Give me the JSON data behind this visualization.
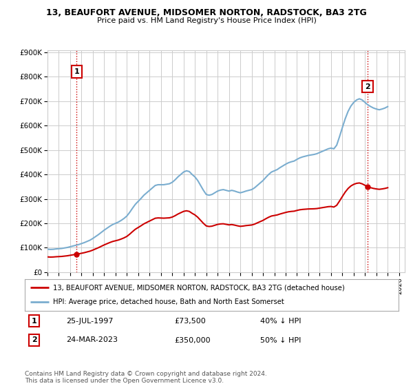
{
  "title": "13, BEAUFORT AVENUE, MIDSOMER NORTON, RADSTOCK, BA3 2TG",
  "subtitle": "Price paid vs. HM Land Registry's House Price Index (HPI)",
  "x_start": 1995.0,
  "x_end": 2026.5,
  "y_min": 0,
  "y_max": 900000,
  "yticks": [
    0,
    100000,
    200000,
    300000,
    400000,
    500000,
    600000,
    700000,
    800000,
    900000
  ],
  "ytick_labels": [
    "£0",
    "£100K",
    "£200K",
    "£300K",
    "£400K",
    "£500K",
    "£600K",
    "£700K",
    "£800K",
    "£900K"
  ],
  "xticks": [
    1995,
    1996,
    1997,
    1998,
    1999,
    2000,
    2001,
    2002,
    2003,
    2004,
    2005,
    2006,
    2007,
    2008,
    2009,
    2010,
    2011,
    2012,
    2013,
    2014,
    2015,
    2016,
    2017,
    2018,
    2019,
    2020,
    2021,
    2022,
    2023,
    2024,
    2025,
    2026
  ],
  "hpi_color": "#7aadcf",
  "price_color": "#cc0000",
  "vline_color": "#cc0000",
  "grid_color": "#cccccc",
  "background_color": "#ffffff",
  "sale1_x": 1997.57,
  "sale1_y": 73500,
  "sale1_label": "1",
  "sale2_x": 2023.22,
  "sale2_y": 350000,
  "sale2_label": "2",
  "legend_line1": "13, BEAUFORT AVENUE, MIDSOMER NORTON, RADSTOCK, BA3 2TG (detached house)",
  "legend_line2": "HPI: Average price, detached house, Bath and North East Somerset",
  "table_row1_num": "1",
  "table_row1_date": "25-JUL-1997",
  "table_row1_price": "£73,500",
  "table_row1_hpi": "40% ↓ HPI",
  "table_row2_num": "2",
  "table_row2_date": "24-MAR-2023",
  "table_row2_price": "£350,000",
  "table_row2_hpi": "50% ↓ HPI",
  "footer": "Contains HM Land Registry data © Crown copyright and database right 2024.\nThis data is licensed under the Open Government Licence v3.0.",
  "hpi_data_x": [
    1995.0,
    1995.25,
    1995.5,
    1995.75,
    1996.0,
    1996.25,
    1996.5,
    1996.75,
    1997.0,
    1997.25,
    1997.5,
    1997.75,
    1998.0,
    1998.25,
    1998.5,
    1998.75,
    1999.0,
    1999.25,
    1999.5,
    1999.75,
    2000.0,
    2000.25,
    2000.5,
    2000.75,
    2001.0,
    2001.25,
    2001.5,
    2001.75,
    2002.0,
    2002.25,
    2002.5,
    2002.75,
    2003.0,
    2003.25,
    2003.5,
    2003.75,
    2004.0,
    2004.25,
    2004.5,
    2004.75,
    2005.0,
    2005.25,
    2005.5,
    2005.75,
    2006.0,
    2006.25,
    2006.5,
    2006.75,
    2007.0,
    2007.25,
    2007.5,
    2007.75,
    2008.0,
    2008.25,
    2008.5,
    2008.75,
    2009.0,
    2009.25,
    2009.5,
    2009.75,
    2010.0,
    2010.25,
    2010.5,
    2010.75,
    2011.0,
    2011.25,
    2011.5,
    2011.75,
    2012.0,
    2012.25,
    2012.5,
    2012.75,
    2013.0,
    2013.25,
    2013.5,
    2013.75,
    2014.0,
    2014.25,
    2014.5,
    2014.75,
    2015.0,
    2015.25,
    2015.5,
    2015.75,
    2016.0,
    2016.25,
    2016.5,
    2016.75,
    2017.0,
    2017.25,
    2017.5,
    2017.75,
    2018.0,
    2018.25,
    2018.5,
    2018.75,
    2019.0,
    2019.25,
    2019.5,
    2019.75,
    2020.0,
    2020.25,
    2020.5,
    2020.75,
    2021.0,
    2021.25,
    2021.5,
    2021.75,
    2022.0,
    2022.25,
    2022.5,
    2022.75,
    2023.0,
    2023.25,
    2023.5,
    2023.75,
    2024.0,
    2024.25,
    2024.5,
    2024.75,
    2025.0
  ],
  "hpi_data_y": [
    94000,
    93000,
    93500,
    95000,
    96000,
    97000,
    99000,
    101000,
    104000,
    107000,
    110000,
    113000,
    117000,
    121000,
    126000,
    131000,
    138000,
    146000,
    154000,
    163000,
    172000,
    180000,
    188000,
    195000,
    200000,
    205000,
    212000,
    220000,
    230000,
    245000,
    262000,
    278000,
    290000,
    302000,
    315000,
    325000,
    335000,
    345000,
    355000,
    358000,
    358000,
    358000,
    360000,
    362000,
    368000,
    378000,
    390000,
    400000,
    410000,
    415000,
    412000,
    400000,
    390000,
    375000,
    355000,
    335000,
    318000,
    315000,
    318000,
    325000,
    332000,
    336000,
    338000,
    335000,
    332000,
    335000,
    332000,
    328000,
    325000,
    328000,
    332000,
    335000,
    338000,
    345000,
    355000,
    365000,
    375000,
    388000,
    400000,
    410000,
    415000,
    420000,
    428000,
    435000,
    442000,
    448000,
    452000,
    455000,
    462000,
    468000,
    472000,
    475000,
    478000,
    480000,
    482000,
    485000,
    490000,
    495000,
    500000,
    505000,
    508000,
    505000,
    520000,
    555000,
    592000,
    628000,
    658000,
    680000,
    695000,
    705000,
    710000,
    705000,
    695000,
    685000,
    678000,
    672000,
    668000,
    665000,
    668000,
    672000,
    678000
  ]
}
